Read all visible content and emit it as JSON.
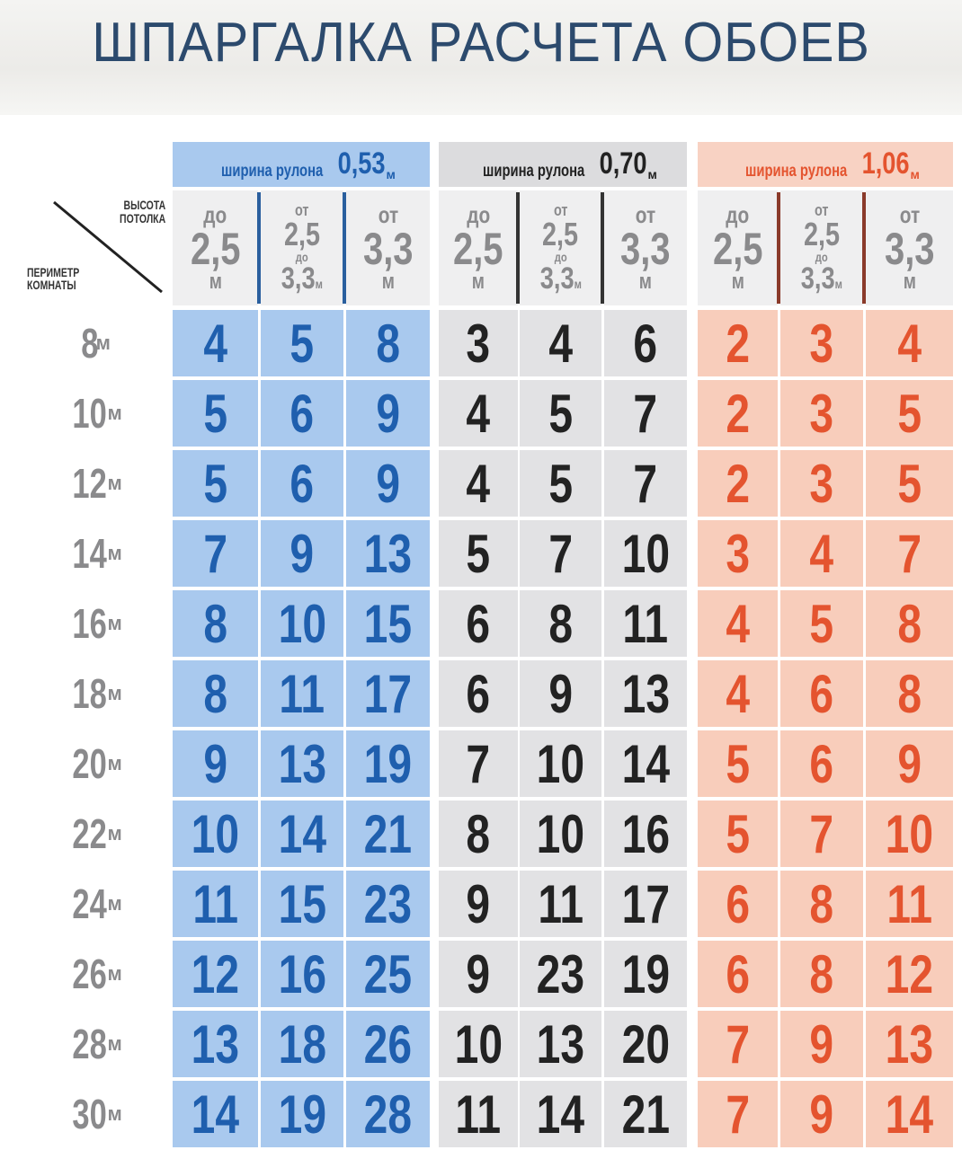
{
  "title": "ШПАРГАЛКА РАСЧЕТА ОБОЕВ",
  "corner": {
    "top": "ВЫСОТА\nПОТОЛКА",
    "bottom": "ПЕРИМЕТР\nКОМНАТЫ"
  },
  "groups": [
    {
      "label": "ширина рулона",
      "value": "0,53",
      "unit": "м",
      "bg": "#a9c9ee",
      "text": "#1f5fae",
      "cell_bg": "#a9c9ee",
      "sep": "#2a5f9e"
    },
    {
      "label": "ширина рулона",
      "value": "0,70",
      "unit": "м",
      "bg": "#dcdcde",
      "text": "#222222",
      "cell_bg": "#e2e2e4",
      "sep": "#333333"
    },
    {
      "label": "ширина рулона",
      "value": "1,06",
      "unit": "м",
      "bg": "#f8d2c3",
      "text": "#e4542f",
      "cell_bg": "#f8cdbb",
      "sep": "#8a3a2a"
    }
  ],
  "heights": [
    {
      "pre": "до",
      "value": "2,5",
      "unit": "м"
    },
    {
      "pre": "от",
      "value": "2,5",
      "pre2": "до",
      "value2": "3,3",
      "unit": "м"
    },
    {
      "pre": "от",
      "value": "3,3",
      "unit": "м"
    }
  ],
  "perimeter_unit": "м",
  "rows": [
    {
      "perimeter": "8",
      "values": [
        "4",
        "5",
        "8",
        "3",
        "4",
        "6",
        "2",
        "3",
        "4"
      ]
    },
    {
      "perimeter": "10",
      "values": [
        "5",
        "6",
        "9",
        "4",
        "5",
        "7",
        "2",
        "3",
        "5"
      ]
    },
    {
      "perimeter": "12",
      "values": [
        "5",
        "6",
        "9",
        "4",
        "5",
        "7",
        "2",
        "3",
        "5"
      ]
    },
    {
      "perimeter": "14",
      "values": [
        "7",
        "9",
        "13",
        "5",
        "7",
        "10",
        "3",
        "4",
        "7"
      ]
    },
    {
      "perimeter": "16",
      "values": [
        "8",
        "10",
        "15",
        "6",
        "8",
        "11",
        "4",
        "5",
        "8"
      ]
    },
    {
      "perimeter": "18",
      "values": [
        "8",
        "11",
        "17",
        "6",
        "9",
        "13",
        "4",
        "6",
        "8"
      ]
    },
    {
      "perimeter": "20",
      "values": [
        "9",
        "13",
        "19",
        "7",
        "10",
        "14",
        "5",
        "6",
        "9"
      ]
    },
    {
      "perimeter": "22",
      "values": [
        "10",
        "14",
        "21",
        "8",
        "10",
        "16",
        "5",
        "7",
        "10"
      ]
    },
    {
      "perimeter": "24",
      "values": [
        "11",
        "15",
        "23",
        "9",
        "11",
        "17",
        "6",
        "8",
        "11"
      ]
    },
    {
      "perimeter": "26",
      "values": [
        "12",
        "16",
        "25",
        "9",
        "23",
        "19",
        "6",
        "8",
        "12"
      ]
    },
    {
      "perimeter": "28",
      "values": [
        "13",
        "18",
        "26",
        "10",
        "13",
        "20",
        "7",
        "9",
        "13"
      ]
    },
    {
      "perimeter": "30",
      "values": [
        "14",
        "19",
        "28",
        "11",
        "14",
        "21",
        "7",
        "9",
        "14"
      ]
    }
  ]
}
